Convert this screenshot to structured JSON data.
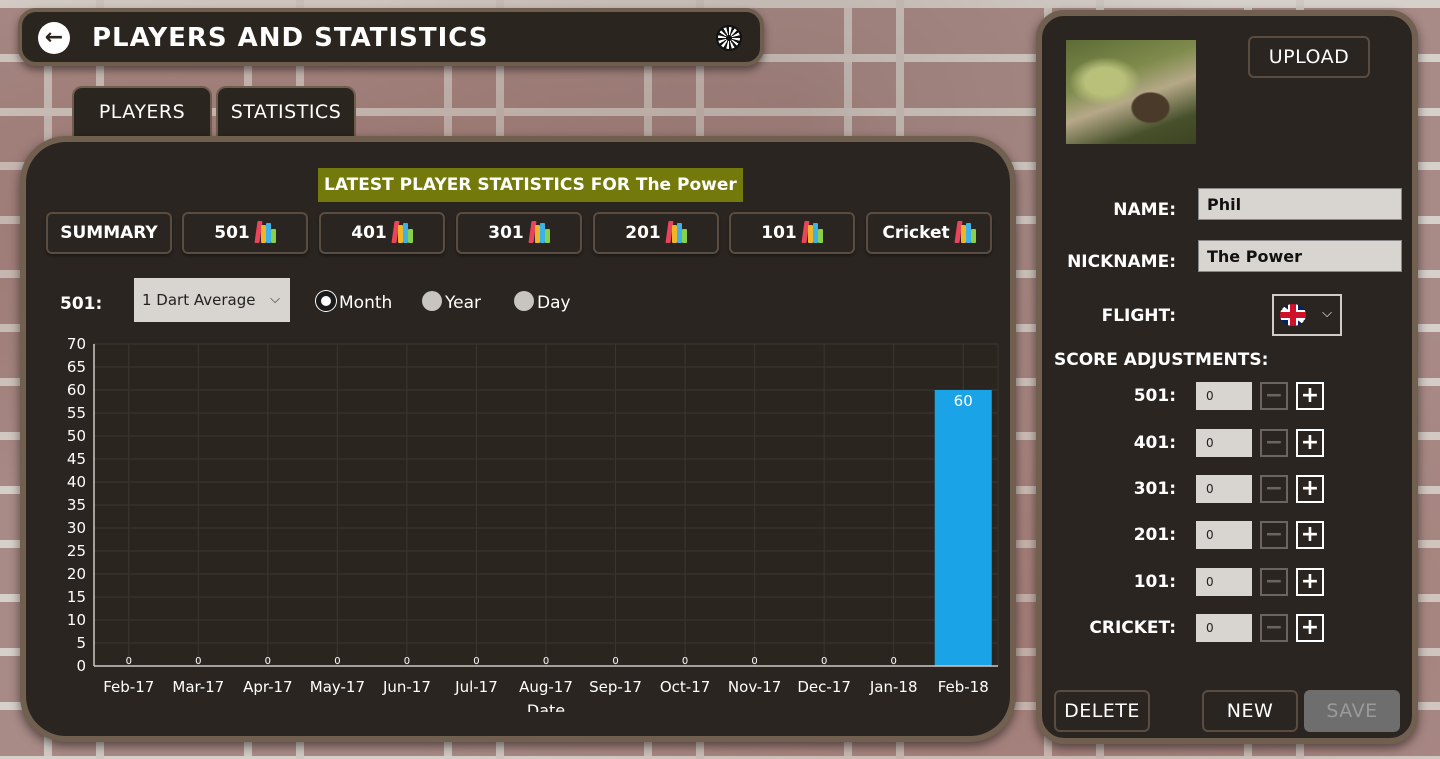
{
  "header": {
    "back_icon": "arrow-left-icon",
    "title": "PLAYERS AND STATISTICS",
    "logo_icon": "dartboard-icon"
  },
  "tabs": [
    {
      "label": "PLAYERS"
    },
    {
      "label": "STATISTICS"
    }
  ],
  "stats": {
    "title": "LATEST PLAYER STATISTICS FOR The Power",
    "title_bg": "#737a0b",
    "games": [
      {
        "label": "SUMMARY",
        "icon": null
      },
      {
        "label": "501",
        "icon": "books-icon"
      },
      {
        "label": "401",
        "icon": "books-icon"
      },
      {
        "label": "301",
        "icon": "books-icon"
      },
      {
        "label": "201",
        "icon": "books-icon"
      },
      {
        "label": "101",
        "icon": "books-icon"
      },
      {
        "label": "Cricket",
        "icon": "books-icon"
      }
    ],
    "filter": {
      "game_label": "501:",
      "metric": "1 Dart Average",
      "period_options": [
        {
          "label": "Month",
          "selected": true
        },
        {
          "label": "Year",
          "selected": false
        },
        {
          "label": "Day",
          "selected": false
        }
      ]
    }
  },
  "chart_data": {
    "type": "bar",
    "categories": [
      "Feb-17",
      "Mar-17",
      "Apr-17",
      "May-17",
      "Jun-17",
      "Jul-17",
      "Aug-17",
      "Sep-17",
      "Oct-17",
      "Nov-17",
      "Dec-17",
      "Jan-18",
      "Feb-18"
    ],
    "values": [
      0,
      0,
      0,
      0,
      0,
      0,
      0,
      0,
      0,
      0,
      0,
      0,
      60
    ],
    "data_labels": [
      "0",
      "0",
      "0",
      "0",
      "0",
      "0",
      "0",
      "0",
      "0",
      "0",
      "0",
      "0",
      "60"
    ],
    "xlabel": "Date",
    "ylabel": "",
    "ylim": [
      0,
      70
    ],
    "yticks": [
      "0",
      "5",
      "10",
      "15",
      "20",
      "25",
      "30",
      "35",
      "40",
      "45",
      "50",
      "55",
      "60",
      "65",
      "70"
    ],
    "grid": true,
    "bar_color": "#1aa3e6"
  },
  "player": {
    "upload_label": "UPLOAD",
    "name_label": "NAME:",
    "name_value": "Phil",
    "nickname_label": "NICKNAME:",
    "nickname_value": "The Power",
    "flight_label": "FLIGHT:",
    "flight_icon": "uk-flag-icon",
    "score_adjustments_title": "SCORE ADJUSTMENTS:",
    "adjustments": [
      {
        "label": "501:",
        "value": "0"
      },
      {
        "label": "401:",
        "value": "0"
      },
      {
        "label": "301:",
        "value": "0"
      },
      {
        "label": "201:",
        "value": "0"
      },
      {
        "label": "101:",
        "value": "0"
      },
      {
        "label": "CRICKET:",
        "value": "0"
      }
    ],
    "minus_label": "−",
    "plus_label": "+",
    "delete_label": "DELETE",
    "new_label": "NEW",
    "save_label": "SAVE"
  }
}
